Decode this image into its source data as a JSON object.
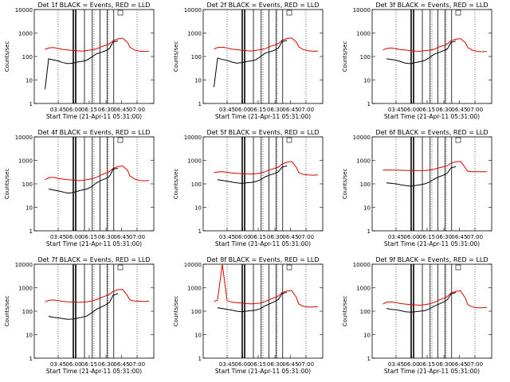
{
  "figure": {
    "rows": 3,
    "cols": 3
  },
  "common": {
    "ylabel": "Counts/sec",
    "xlabel": "Start Time (21-Apr-11 05:31:00)",
    "y_ticks": [
      1,
      10,
      100,
      1000,
      10000
    ],
    "y_tick_labels": [
      "1",
      "10",
      "100",
      "1000",
      "10000"
    ],
    "x_ticks": [
      "03:45",
      "06:00",
      "06:15",
      "06:30",
      "06:45",
      "07:00"
    ],
    "colors": {
      "events": "#000000",
      "lld": "#dd0000"
    }
  },
  "chart_data": [
    {
      "type": "line",
      "title": "Det 1f BLACK = Events, RED = LLD",
      "ylim": [
        1,
        10000
      ],
      "log_y": true,
      "x": [
        0.09,
        0.12,
        0.16,
        0.2,
        0.24,
        0.28,
        0.32,
        0.36,
        0.4,
        0.44,
        0.48,
        0.52,
        0.56,
        0.6,
        0.63,
        0.66,
        0.7,
        0.74,
        0.78,
        0.8,
        0.84,
        0.88,
        0.92,
        0.96
      ],
      "series": [
        {
          "name": "Events",
          "values": [
            4,
            80,
            72,
            65,
            55,
            50,
            52,
            58,
            62,
            70,
            95,
            130,
            150,
            180,
            220,
            420,
            460,
            null,
            null,
            null,
            null,
            null,
            null,
            null
          ]
        },
        {
          "name": "LLD",
          "values": [
            200,
            230,
            240,
            220,
            200,
            190,
            180,
            175,
            170,
            180,
            190,
            210,
            260,
            300,
            350,
            480,
            560,
            600,
            400,
            250,
            190,
            170,
            165,
            170
          ]
        }
      ]
    },
    {
      "type": "line",
      "title": "Det 2f BLACK = Events, RED = LLD",
      "ylim": [
        1,
        10000
      ],
      "log_y": true,
      "x": [
        0.09,
        0.12,
        0.16,
        0.2,
        0.24,
        0.28,
        0.32,
        0.36,
        0.4,
        0.44,
        0.48,
        0.52,
        0.56,
        0.6,
        0.63,
        0.66,
        0.7,
        0.74,
        0.78,
        0.8,
        0.84,
        0.88,
        0.92,
        0.96
      ],
      "series": [
        {
          "name": "Events",
          "values": [
            5,
            85,
            75,
            68,
            58,
            52,
            55,
            60,
            65,
            72,
            100,
            140,
            160,
            190,
            230,
            440,
            480,
            null,
            null,
            null,
            null,
            null,
            null,
            null
          ]
        },
        {
          "name": "LLD",
          "values": [
            210,
            240,
            250,
            230,
            205,
            195,
            185,
            178,
            172,
            182,
            195,
            215,
            270,
            310,
            360,
            500,
            580,
            620,
            410,
            255,
            195,
            175,
            168,
            172
          ]
        }
      ]
    },
    {
      "type": "line",
      "title": "Det 3f BLACK = Events, RED = LLD",
      "ylim": [
        1,
        10000
      ],
      "log_y": true,
      "x": [
        0.09,
        0.12,
        0.16,
        0.2,
        0.24,
        0.28,
        0.32,
        0.36,
        0.4,
        0.44,
        0.48,
        0.52,
        0.56,
        0.6,
        0.63,
        0.66,
        0.7,
        0.74,
        0.78,
        0.8,
        0.84,
        0.88,
        0.92,
        0.96
      ],
      "series": [
        {
          "name": "Events",
          "values": [
            null,
            80,
            75,
            70,
            60,
            52,
            50,
            55,
            60,
            68,
            90,
            125,
            150,
            180,
            210,
            400,
            450,
            null,
            null,
            null,
            null,
            null,
            null,
            null
          ]
        },
        {
          "name": "LLD",
          "values": [
            190,
            220,
            230,
            215,
            195,
            188,
            178,
            170,
            168,
            175,
            185,
            205,
            255,
            295,
            345,
            470,
            540,
            580,
            390,
            240,
            185,
            165,
            160,
            165
          ]
        }
      ]
    },
    {
      "type": "line",
      "title": "Det 4f BLACK = Events, RED = LLD",
      "ylim": [
        1,
        10000
      ],
      "log_y": true,
      "x": [
        0.09,
        0.12,
        0.16,
        0.2,
        0.24,
        0.28,
        0.32,
        0.36,
        0.4,
        0.44,
        0.48,
        0.52,
        0.56,
        0.6,
        0.63,
        0.66,
        0.7,
        0.74,
        0.78,
        0.8,
        0.84,
        0.88,
        0.92,
        0.96
      ],
      "series": [
        {
          "name": "Events",
          "values": [
            null,
            60,
            55,
            50,
            45,
            40,
            42,
            48,
            55,
            60,
            75,
            110,
            140,
            170,
            210,
            420,
            470,
            null,
            null,
            null,
            null,
            null,
            null,
            null
          ]
        },
        {
          "name": "LLD",
          "values": [
            150,
            180,
            190,
            170,
            160,
            150,
            145,
            140,
            140,
            150,
            165,
            190,
            240,
            290,
            340,
            460,
            550,
            580,
            380,
            220,
            160,
            140,
            135,
            140
          ]
        }
      ]
    },
    {
      "type": "line",
      "title": "Det 5f BLACK = Events, RED = LLD",
      "ylim": [
        1,
        10000
      ],
      "log_y": true,
      "x": [
        0.09,
        0.12,
        0.16,
        0.2,
        0.24,
        0.28,
        0.32,
        0.36,
        0.4,
        0.44,
        0.48,
        0.52,
        0.56,
        0.6,
        0.63,
        0.66,
        0.7,
        0.74,
        0.78,
        0.8,
        0.84,
        0.88,
        0.92,
        0.96
      ],
      "series": [
        {
          "name": "Events",
          "values": [
            null,
            150,
            140,
            130,
            120,
            110,
            105,
            110,
            115,
            125,
            150,
            200,
            240,
            280,
            330,
            520,
            580,
            null,
            null,
            null,
            null,
            null,
            null,
            null
          ]
        },
        {
          "name": "LLD",
          "values": [
            300,
            320,
            330,
            310,
            290,
            280,
            270,
            265,
            260,
            270,
            290,
            330,
            400,
            460,
            520,
            700,
            820,
            900,
            500,
            300,
            250,
            240,
            235,
            240
          ]
        }
      ]
    },
    {
      "type": "line",
      "title": "Det 6f BLACK = Events, RED = LLD",
      "ylim": [
        1,
        10000
      ],
      "log_y": true,
      "x": [
        0.09,
        0.12,
        0.16,
        0.2,
        0.24,
        0.28,
        0.32,
        0.36,
        0.4,
        0.44,
        0.48,
        0.52,
        0.56,
        0.6,
        0.63,
        0.66,
        0.7,
        0.74,
        0.78,
        0.8,
        0.84,
        0.88,
        0.92,
        0.96
      ],
      "series": [
        {
          "name": "Events",
          "values": [
            null,
            110,
            105,
            100,
            90,
            85,
            80,
            85,
            90,
            100,
            120,
            160,
            200,
            240,
            290,
            480,
            540,
            null,
            null,
            null,
            null,
            null,
            null,
            null
          ]
        },
        {
          "name": "LLD",
          "values": [
            380,
            390,
            390,
            385,
            380,
            375,
            370,
            368,
            365,
            370,
            385,
            420,
            480,
            540,
            600,
            760,
            860,
            900,
            480,
            340,
            330,
            330,
            330,
            330
          ]
        }
      ]
    },
    {
      "type": "line",
      "title": "Det 7f BLACK = Events, RED = LLD",
      "ylim": [
        1,
        10000
      ],
      "log_y": true,
      "x": [
        0.09,
        0.12,
        0.16,
        0.2,
        0.24,
        0.28,
        0.32,
        0.36,
        0.4,
        0.44,
        0.48,
        0.52,
        0.56,
        0.6,
        0.63,
        0.66,
        0.7,
        0.74,
        0.78,
        0.8,
        0.84,
        0.88,
        0.92,
        0.96
      ],
      "series": [
        {
          "name": "Events",
          "values": [
            null,
            60,
            55,
            52,
            48,
            45,
            46,
            50,
            55,
            62,
            85,
            120,
            150,
            190,
            240,
            480,
            560,
            null,
            null,
            null,
            null,
            null,
            null,
            null
          ]
        },
        {
          "name": "LLD",
          "values": [
            250,
            290,
            300,
            280,
            260,
            250,
            245,
            240,
            240,
            250,
            270,
            310,
            380,
            450,
            520,
            700,
            820,
            850,
            450,
            300,
            270,
            265,
            260,
            265
          ]
        }
      ]
    },
    {
      "type": "line",
      "title": "Det 8f BLACK = Events, RED = LLD",
      "ylim": [
        1,
        10000
      ],
      "log_y": true,
      "x": [
        0.09,
        0.12,
        0.16,
        0.2,
        0.24,
        0.28,
        0.32,
        0.36,
        0.4,
        0.44,
        0.48,
        0.52,
        0.56,
        0.6,
        0.63,
        0.66,
        0.7,
        0.74,
        0.78,
        0.8,
        0.84,
        0.88,
        0.92,
        0.96
      ],
      "series": [
        {
          "name": "Events",
          "values": [
            null,
            140,
            130,
            120,
            110,
            100,
            95,
            100,
            105,
            110,
            130,
            170,
            210,
            260,
            320,
            560,
            640,
            null,
            null,
            null,
            null,
            null,
            null,
            null
          ]
        },
        {
          "name": "LLD",
          "values": [
            260,
            300,
            10000,
            280,
            240,
            230,
            220,
            210,
            205,
            210,
            225,
            260,
            320,
            380,
            440,
            620,
            720,
            760,
            380,
            200,
            160,
            150,
            150,
            155
          ]
        }
      ]
    },
    {
      "type": "line",
      "title": "Det 9f BLACK = Events, RED = LLD",
      "ylim": [
        1,
        10000
      ],
      "log_y": true,
      "x": [
        0.09,
        0.12,
        0.16,
        0.2,
        0.24,
        0.28,
        0.32,
        0.36,
        0.4,
        0.44,
        0.48,
        0.52,
        0.56,
        0.6,
        0.63,
        0.66,
        0.7,
        0.74,
        0.78,
        0.8,
        0.84,
        0.88,
        0.92,
        0.96
      ],
      "series": [
        {
          "name": "Events",
          "values": [
            null,
            130,
            120,
            115,
            105,
            95,
            90,
            95,
            100,
            105,
            125,
            165,
            200,
            250,
            310,
            540,
            620,
            null,
            null,
            null,
            null,
            null,
            null,
            null
          ]
        },
        {
          "name": "LLD",
          "values": [
            200,
            240,
            250,
            230,
            210,
            200,
            190,
            185,
            180,
            190,
            205,
            240,
            300,
            360,
            420,
            600,
            700,
            740,
            360,
            190,
            150,
            140,
            140,
            145
          ]
        }
      ]
    }
  ]
}
